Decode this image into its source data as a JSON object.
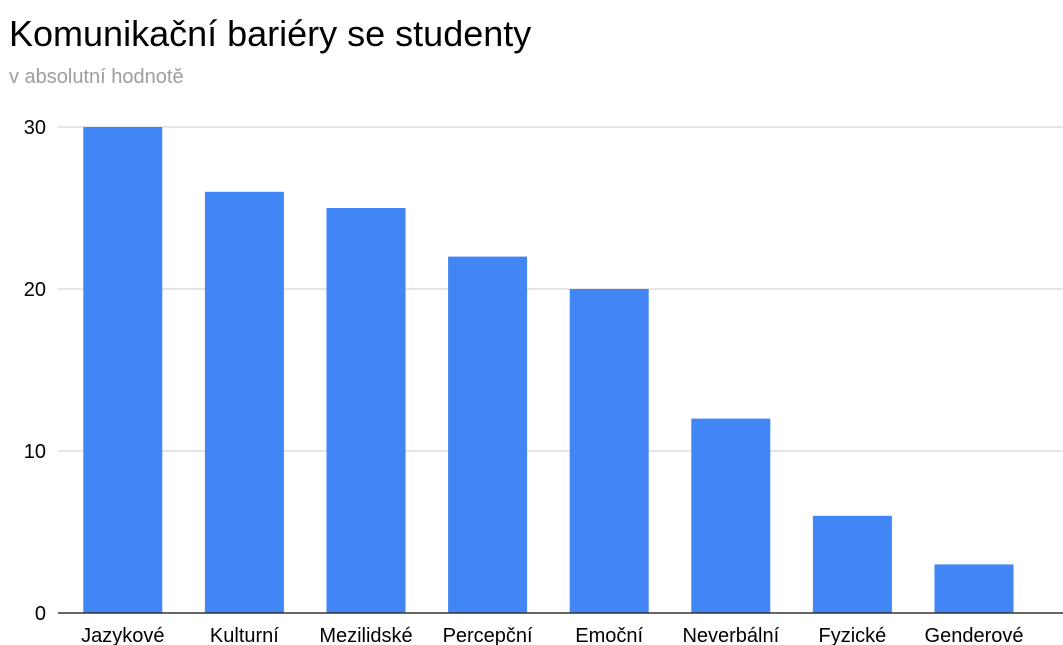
{
  "chart_data": {
    "type": "bar",
    "title": "Komunikační bariéry se studenty",
    "subtitle": "v absolutní hodnotě",
    "xlabel": "",
    "ylabel": "",
    "categories": [
      "Jazykové",
      "Kulturní",
      "Mezilidské",
      "Percepční",
      "Emoční",
      "Neverbální",
      "Fyzické",
      "Genderové"
    ],
    "values": [
      30,
      26,
      25,
      22,
      20,
      12,
      6,
      3
    ],
    "ylim": [
      0,
      30
    ],
    "yticks": [
      0,
      10,
      20,
      30
    ],
    "grid": true,
    "legend": "none",
    "bar_color": "#4285f4",
    "grid_color": "#cccccc",
    "baseline_color": "#333333"
  }
}
